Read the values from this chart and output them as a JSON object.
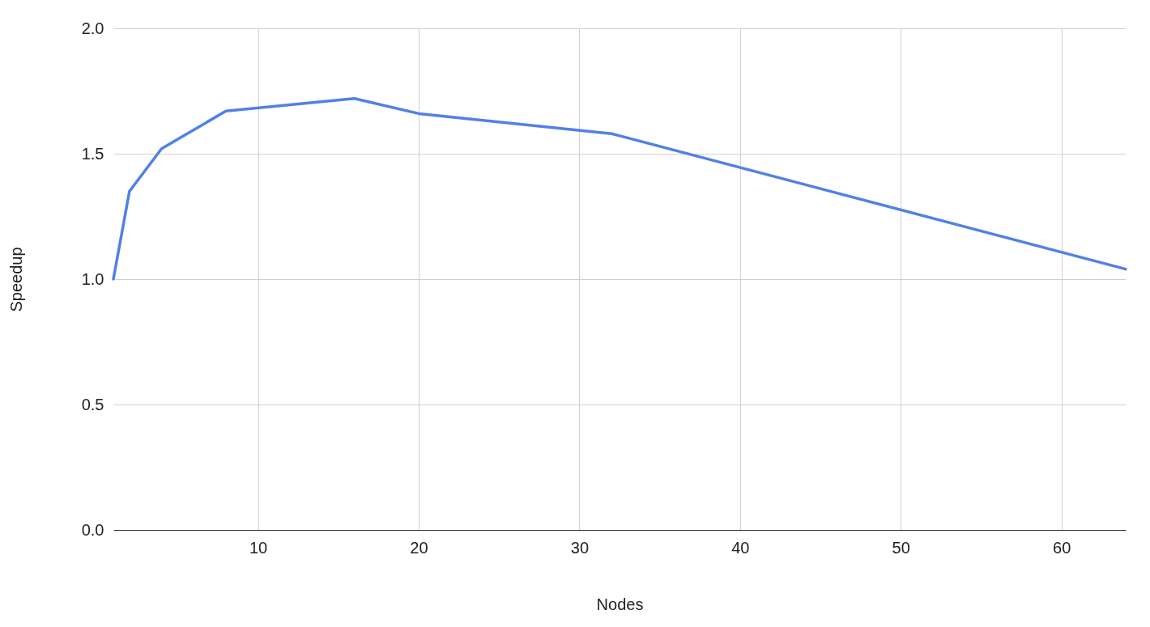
{
  "chart_data": {
    "type": "line",
    "xlabel": "Nodes",
    "ylabel": "Speedup",
    "x": [
      1,
      2,
      4,
      8,
      16,
      20,
      32,
      64
    ],
    "series": [
      {
        "color": "#5081e6",
        "values": [
          1.0,
          1.35,
          1.52,
          1.67,
          1.72,
          1.66,
          1.58,
          1.04
        ]
      }
    ],
    "xlim": [
      1,
      64
    ],
    "xticks": [
      10,
      20,
      30,
      40,
      50,
      60
    ],
    "ylim": [
      0,
      2
    ],
    "yticks": [
      {
        "value": 0,
        "label": "0.0"
      },
      {
        "value": 0.5,
        "label": "0.5"
      },
      {
        "value": 1,
        "label": "1.0"
      },
      {
        "value": 1.5,
        "label": "1.5"
      },
      {
        "value": 2,
        "label": "2.0"
      }
    ],
    "grid": true,
    "marker": "none",
    "line_style": "solid"
  }
}
